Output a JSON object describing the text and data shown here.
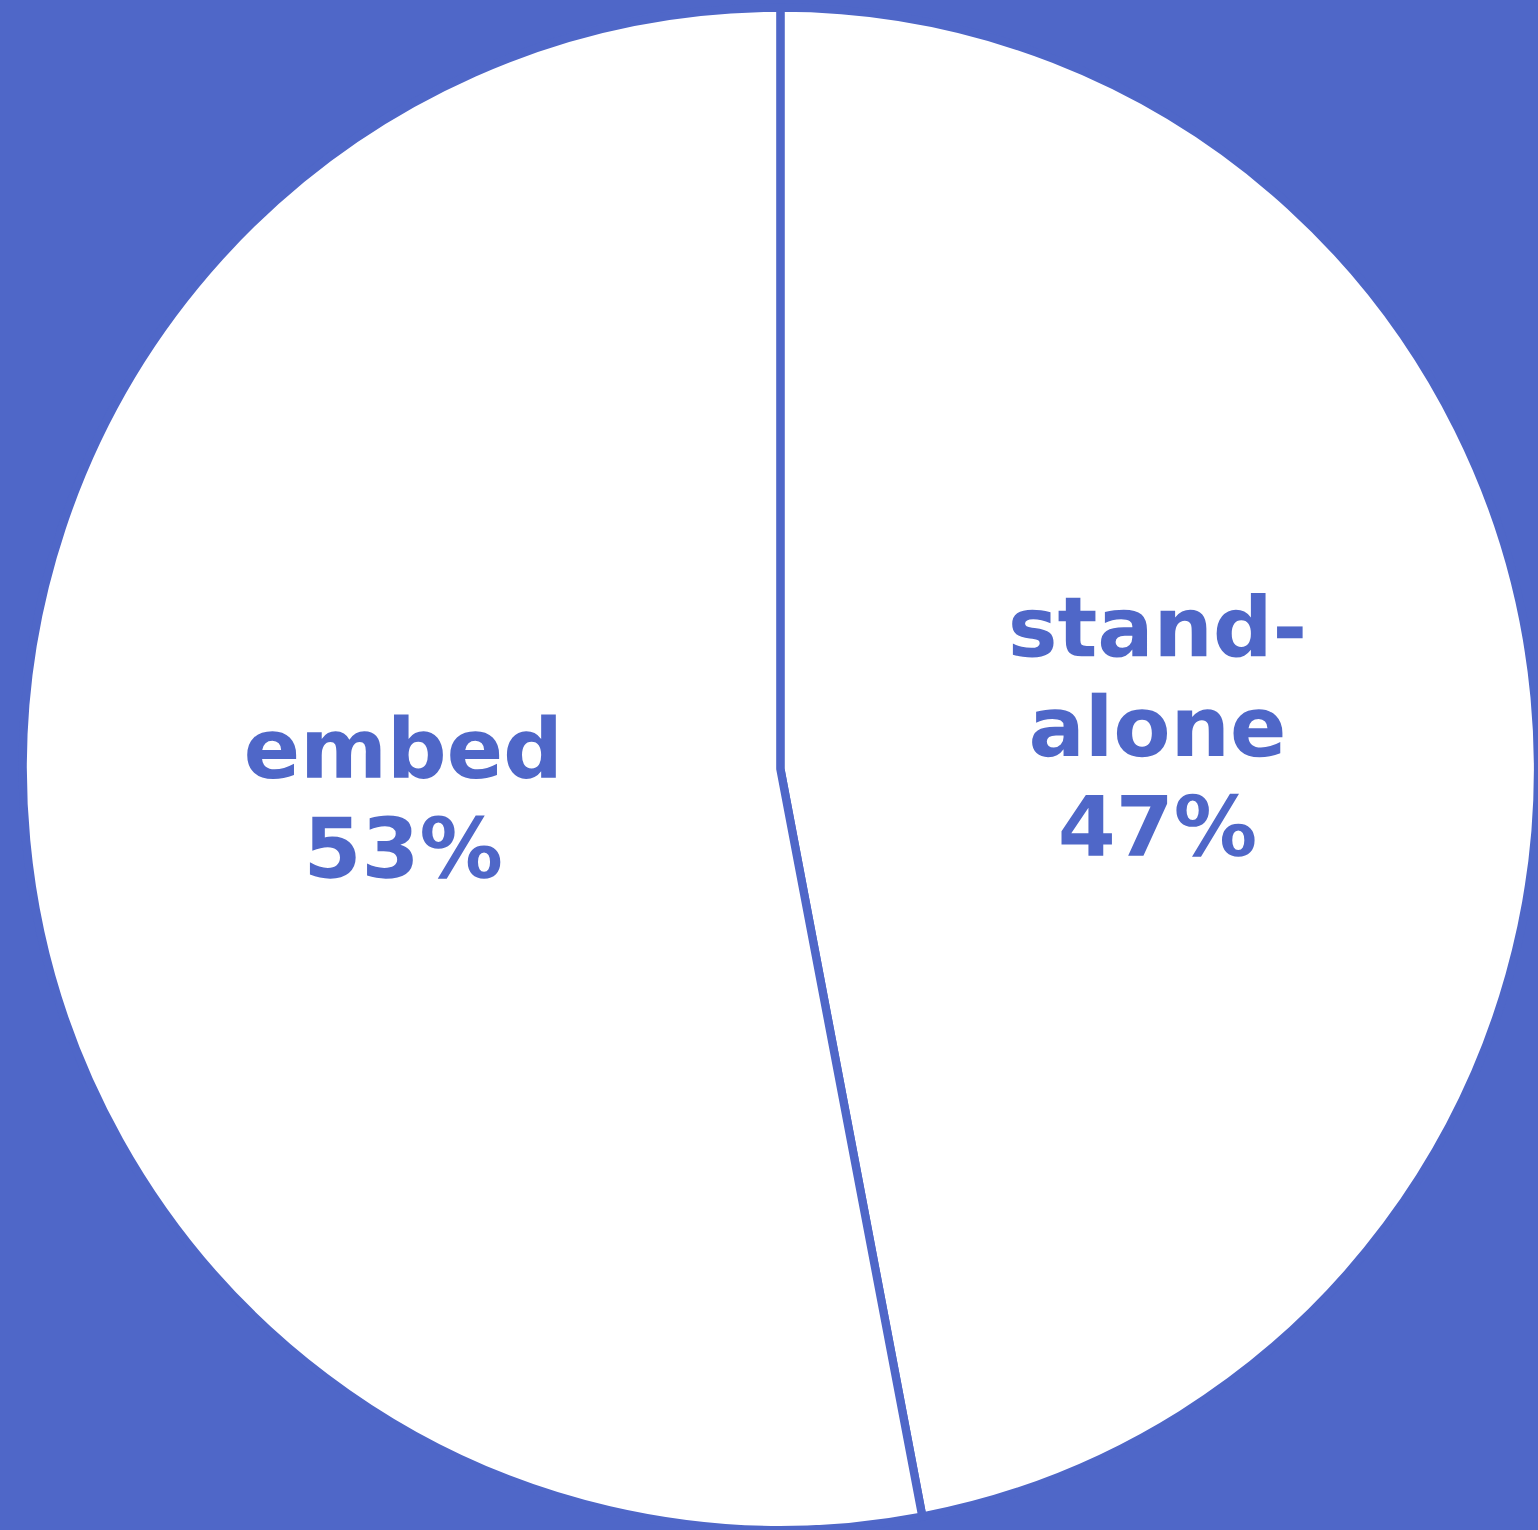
{
  "chart_data": {
    "type": "pie",
    "categories": [
      "stand-alone",
      "embed"
    ],
    "values": [
      47,
      53
    ],
    "value_labels": [
      "47%",
      "53%"
    ],
    "colors": [
      "#ffffff",
      "#ffffff"
    ]
  }
}
